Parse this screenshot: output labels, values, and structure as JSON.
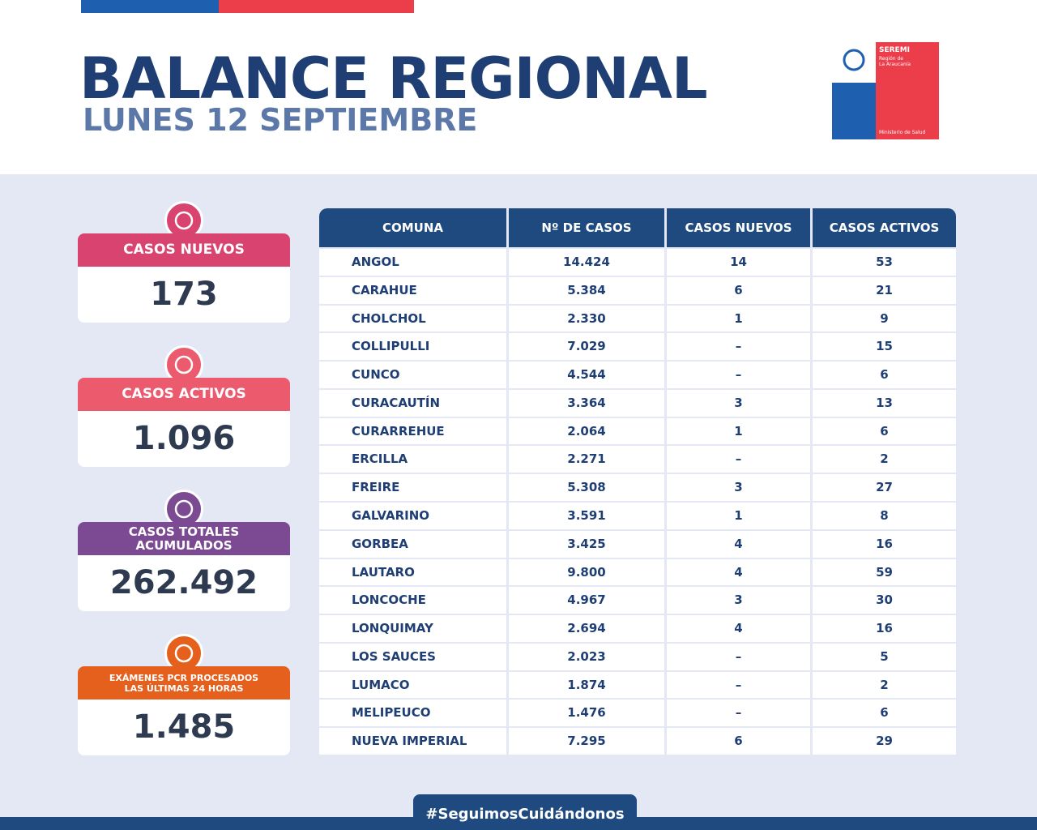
{
  "header": {
    "title": "BALANCE REGIONAL",
    "subtitle": "LUNES 12 SEPTIEMBRE"
  },
  "logo": {
    "brand": "SEREMI",
    "region": [
      "Región de",
      "La Araucanía"
    ],
    "ministry": "Ministerio de Salud"
  },
  "cards": [
    {
      "label": [
        "CASOS NUEVOS"
      ],
      "value": "173",
      "color": "#d9436f"
    },
    {
      "label": [
        "CASOS ACTIVOS"
      ],
      "value": "1.096",
      "color": "#ec5a6e"
    },
    {
      "label": [
        "CASOS TOTALES",
        "ACUMULADOS"
      ],
      "value": "262.492",
      "color": "#7b4a93"
    },
    {
      "label": [
        "EXÁMENES PCR PROCESADOS",
        "LAS ÚLTIMAS 24 HORAS"
      ],
      "value": "1.485",
      "color": "#e5601c"
    }
  ],
  "table": {
    "columns": [
      "COMUNA",
      "Nº DE CASOS",
      "CASOS NUEVOS",
      "CASOS ACTIVOS"
    ],
    "rows": [
      [
        "ANGOL",
        "14.424",
        "14",
        "53"
      ],
      [
        "CARAHUE",
        "5.384",
        "6",
        "21"
      ],
      [
        "CHOLCHOL",
        "2.330",
        "1",
        "9"
      ],
      [
        "COLLIPULLI",
        "7.029",
        "–",
        "15"
      ],
      [
        "CUNCO",
        "4.544",
        "–",
        "6"
      ],
      [
        "CURACAUTÍN",
        "3.364",
        "3",
        "13"
      ],
      [
        "CURARREHUE",
        "2.064",
        "1",
        "6"
      ],
      [
        "ERCILLA",
        "2.271",
        "–",
        "2"
      ],
      [
        "FREIRE",
        "5.308",
        "3",
        "27"
      ],
      [
        "GALVARINO",
        "3.591",
        "1",
        "8"
      ],
      [
        "GORBEA",
        "3.425",
        "4",
        "16"
      ],
      [
        "LAUTARO",
        "9.800",
        "4",
        "59"
      ],
      [
        "LONCOCHE",
        "4.967",
        "3",
        "30"
      ],
      [
        "LONQUIMAY",
        "2.694",
        "4",
        "16"
      ],
      [
        "LOS SAUCES",
        "2.023",
        "–",
        "5"
      ],
      [
        "LUMACO",
        "1.874",
        "–",
        "2"
      ],
      [
        "MELIPEUCO",
        "1.476",
        "–",
        "6"
      ],
      [
        "NUEVA IMPERIAL",
        "7.295",
        "6",
        "29"
      ]
    ]
  },
  "footer": {
    "hashtag": "#SeguimosCuidándonos"
  }
}
